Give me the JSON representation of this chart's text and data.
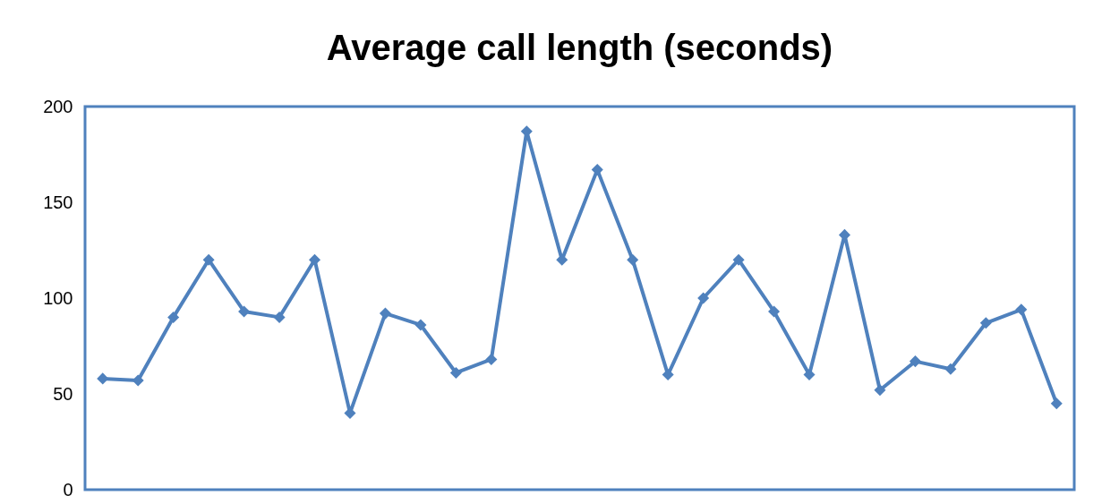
{
  "chart_data": {
    "type": "line",
    "title": "Average call length (seconds)",
    "categories": [
      null,
      null,
      null,
      null,
      null,
      null,
      null,
      null,
      null,
      null,
      null,
      null,
      null,
      null,
      null,
      null,
      null,
      null,
      null,
      null,
      null,
      null,
      null,
      null,
      null,
      null,
      null,
      null
    ],
    "series": [
      {
        "color": "#4f81bd",
        "values": [
          58,
          57,
          90,
          120,
          93,
          90,
          120,
          40,
          92,
          86,
          61,
          68,
          187,
          120,
          167,
          120,
          60,
          100,
          120,
          93,
          60,
          133,
          52,
          67,
          63,
          87,
          94,
          45
        ]
      }
    ],
    "ylim": [
      0,
      200
    ],
    "yticks": [
      0,
      50,
      100,
      150,
      200
    ],
    "grid": false,
    "legend": false,
    "marker": "diamond",
    "line_style": "solid"
  }
}
